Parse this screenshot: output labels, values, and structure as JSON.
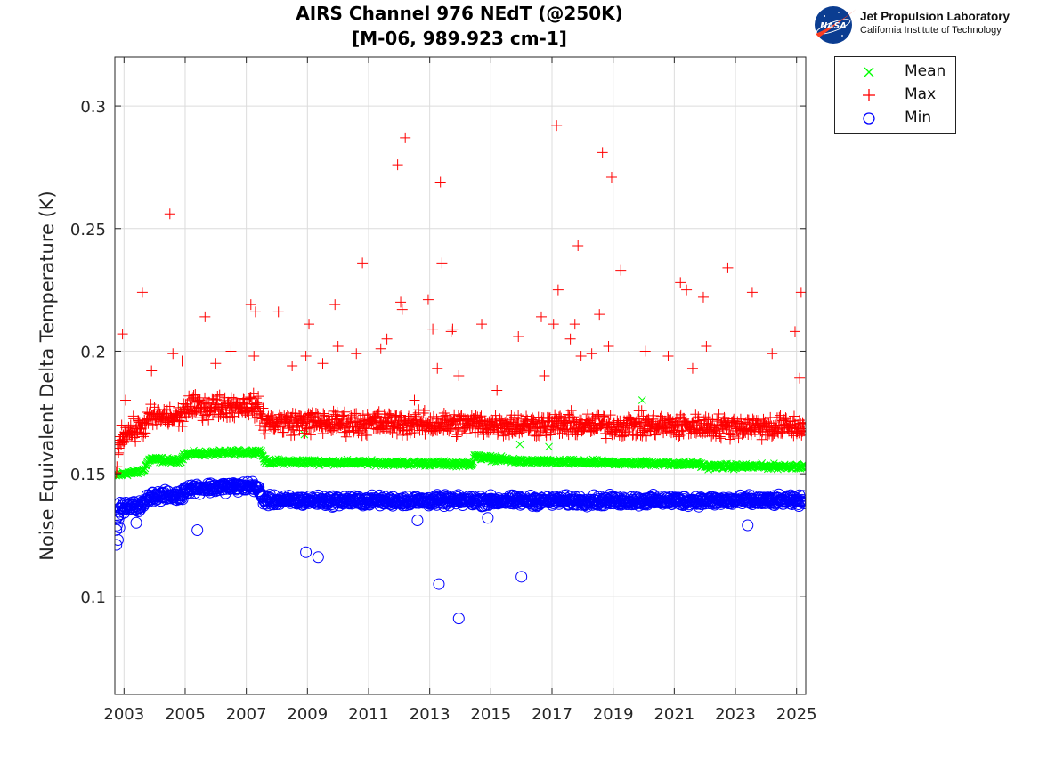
{
  "title_line1": "AIRS Channel 976 NEdT (@250K)",
  "title_line2": "[M-06, 989.923 cm-1]",
  "logo": {
    "name": "Jet Propulsion Laboratory",
    "subtitle": "California Institute of Technology",
    "badge_text": "NASA",
    "badge_color": "#0b3d91",
    "swoosh_color": "#fc3d21"
  },
  "legend": [
    {
      "label": "Mean",
      "marker": "x",
      "color": "#00ff00"
    },
    {
      "label": "Max",
      "marker": "+",
      "color": "#ff0000"
    },
    {
      "label": "Min",
      "marker": "o",
      "color": "#0000ff"
    }
  ],
  "chart_data": {
    "type": "scatter",
    "title": "AIRS Channel 976 NEdT (@250K) [M-06, 989.923 cm-1]",
    "xlabel": "",
    "ylabel": "Noise Equivalent Delta Temperature (K)",
    "xlim": [
      2002.7,
      2025.3
    ],
    "ylim": [
      0.06,
      0.32
    ],
    "xticks": [
      2003,
      2005,
      2007,
      2009,
      2011,
      2013,
      2015,
      2017,
      2019,
      2021,
      2023,
      2025
    ],
    "yticks": [
      0.1,
      0.15,
      0.2,
      0.25,
      0.3
    ],
    "ytick_labels": [
      "0.1",
      "0.15",
      "0.2",
      "0.25",
      "0.3"
    ],
    "grid": true,
    "legend_position": "outside-top-right",
    "series": [
      {
        "name": "Mean",
        "marker": "x",
        "color": "#00ff00",
        "trend": [
          [
            2002.7,
            0.149
          ],
          [
            2002.95,
            0.15
          ],
          [
            2003.6,
            0.151
          ],
          [
            2003.85,
            0.156
          ],
          [
            2004.8,
            0.155
          ],
          [
            2005.0,
            0.158
          ],
          [
            2007.5,
            0.159
          ],
          [
            2007.6,
            0.155
          ],
          [
            2014.4,
            0.154
          ],
          [
            2014.45,
            0.157
          ],
          [
            2016.0,
            0.155
          ],
          [
            2021.8,
            0.154
          ],
          [
            2022.0,
            0.153
          ],
          [
            2025.3,
            0.153
          ]
        ],
        "spread": 0.0015,
        "outliers": [
          [
            2004.9,
            0.176
          ],
          [
            2015.95,
            0.162
          ],
          [
            2016.9,
            0.161
          ],
          [
            2019.95,
            0.18
          ],
          [
            2008.9,
            0.166
          ]
        ]
      },
      {
        "name": "Max",
        "marker": "+",
        "color": "#ff0000",
        "trend": [
          [
            2002.7,
            0.152
          ],
          [
            2002.9,
            0.166
          ],
          [
            2003.6,
            0.169
          ],
          [
            2003.85,
            0.173
          ],
          [
            2004.9,
            0.173
          ],
          [
            2005.0,
            0.177
          ],
          [
            2007.3,
            0.178
          ],
          [
            2007.6,
            0.171
          ],
          [
            2025.3,
            0.169
          ]
        ],
        "spread": 0.007,
        "outliers": [
          [
            2002.95,
            0.207
          ],
          [
            2003.05,
            0.18
          ],
          [
            2003.6,
            0.224
          ],
          [
            2003.9,
            0.192
          ],
          [
            2004.5,
            0.256
          ],
          [
            2004.6,
            0.199
          ],
          [
            2004.9,
            0.196
          ],
          [
            2005.65,
            0.214
          ],
          [
            2006.0,
            0.195
          ],
          [
            2006.5,
            0.2
          ],
          [
            2007.15,
            0.219
          ],
          [
            2007.3,
            0.216
          ],
          [
            2007.25,
            0.198
          ],
          [
            2008.05,
            0.216
          ],
          [
            2008.5,
            0.194
          ],
          [
            2008.95,
            0.198
          ],
          [
            2009.05,
            0.211
          ],
          [
            2009.5,
            0.195
          ],
          [
            2009.9,
            0.219
          ],
          [
            2010.0,
            0.202
          ],
          [
            2010.8,
            0.236
          ],
          [
            2010.6,
            0.199
          ],
          [
            2011.4,
            0.201
          ],
          [
            2011.6,
            0.205
          ],
          [
            2011.95,
            0.276
          ],
          [
            2012.05,
            0.22
          ],
          [
            2012.1,
            0.217
          ],
          [
            2012.2,
            0.287
          ],
          [
            2012.95,
            0.221
          ],
          [
            2013.1,
            0.209
          ],
          [
            2013.25,
            0.193
          ],
          [
            2013.35,
            0.269
          ],
          [
            2013.4,
            0.236
          ],
          [
            2013.7,
            0.208
          ],
          [
            2013.75,
            0.209
          ],
          [
            2013.95,
            0.19
          ],
          [
            2014.7,
            0.211
          ],
          [
            2015.9,
            0.206
          ],
          [
            2016.65,
            0.214
          ],
          [
            2016.75,
            0.19
          ],
          [
            2017.05,
            0.211
          ],
          [
            2017.15,
            0.292
          ],
          [
            2017.2,
            0.225
          ],
          [
            2017.6,
            0.205
          ],
          [
            2017.75,
            0.211
          ],
          [
            2017.85,
            0.243
          ],
          [
            2017.95,
            0.198
          ],
          [
            2018.3,
            0.199
          ],
          [
            2018.55,
            0.215
          ],
          [
            2018.65,
            0.281
          ],
          [
            2018.85,
            0.202
          ],
          [
            2018.95,
            0.271
          ],
          [
            2019.25,
            0.233
          ],
          [
            2020.05,
            0.2
          ],
          [
            2020.8,
            0.198
          ],
          [
            2021.2,
            0.228
          ],
          [
            2021.4,
            0.225
          ],
          [
            2021.6,
            0.193
          ],
          [
            2021.95,
            0.222
          ],
          [
            2022.05,
            0.202
          ],
          [
            2022.75,
            0.234
          ],
          [
            2023.55,
            0.224
          ],
          [
            2024.2,
            0.199
          ],
          [
            2024.95,
            0.208
          ],
          [
            2025.15,
            0.224
          ],
          [
            2025.1,
            0.189
          ],
          [
            2012.5,
            0.18
          ],
          [
            2015.2,
            0.184
          ]
        ]
      },
      {
        "name": "Min",
        "marker": "o",
        "color": "#0000ff",
        "trend": [
          [
            2002.7,
            0.124
          ],
          [
            2002.85,
            0.136
          ],
          [
            2003.6,
            0.137
          ],
          [
            2003.85,
            0.141
          ],
          [
            2004.9,
            0.141
          ],
          [
            2005.0,
            0.144
          ],
          [
            2007.3,
            0.145
          ],
          [
            2007.6,
            0.139
          ],
          [
            2025.3,
            0.139
          ]
        ],
        "spread": 0.003,
        "outliers": [
          [
            2002.75,
            0.121
          ],
          [
            2002.8,
            0.123
          ],
          [
            2002.85,
            0.128
          ],
          [
            2005.4,
            0.127
          ],
          [
            2008.95,
            0.118
          ],
          [
            2009.35,
            0.116
          ],
          [
            2012.6,
            0.131
          ],
          [
            2013.3,
            0.105
          ],
          [
            2013.95,
            0.091
          ],
          [
            2014.9,
            0.132
          ],
          [
            2016.0,
            0.108
          ],
          [
            2023.4,
            0.129
          ],
          [
            2003.4,
            0.13
          ]
        ]
      }
    ]
  }
}
